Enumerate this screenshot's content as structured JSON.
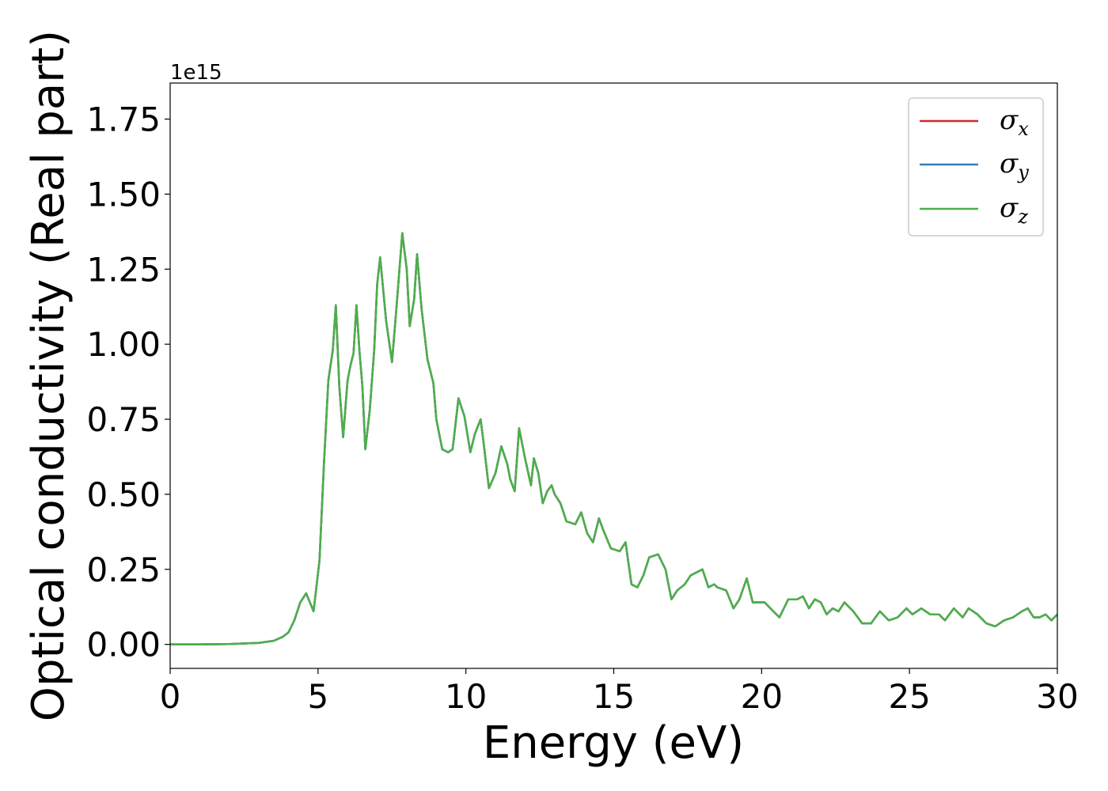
{
  "chart_data": {
    "type": "line",
    "xlabel": "Energy (eV)",
    "ylabel": "Optical conductivity (Real part)",
    "y_offset_label": "1e15",
    "xlim": [
      0,
      30
    ],
    "ylim": [
      -0.08,
      1.87
    ],
    "y_scale": 1000000000000000.0,
    "x_ticks": [
      0,
      5,
      10,
      15,
      20,
      25,
      30
    ],
    "x_tick_labels": [
      "0",
      "5",
      "10",
      "15",
      "20",
      "25",
      "30"
    ],
    "y_ticks": [
      0.0,
      0.25,
      0.5,
      0.75,
      1.0,
      1.25,
      1.5,
      1.75
    ],
    "y_tick_labels": [
      "0.00",
      "0.25",
      "0.50",
      "0.75",
      "1.00",
      "1.25",
      "1.50",
      "1.75"
    ],
    "grid": false,
    "legend_position": "top-right",
    "x": [
      0,
      1,
      2,
      3,
      3.5,
      3.8,
      4.0,
      4.2,
      4.4,
      4.6,
      4.85,
      5.05,
      5.2,
      5.35,
      5.5,
      5.6,
      5.72,
      5.85,
      6.0,
      6.1,
      6.2,
      6.3,
      6.4,
      6.5,
      6.6,
      6.75,
      6.9,
      7.0,
      7.1,
      7.3,
      7.5,
      7.65,
      7.85,
      8.0,
      8.1,
      8.25,
      8.35,
      8.5,
      8.7,
      8.9,
      9.0,
      9.2,
      9.4,
      9.55,
      9.75,
      9.95,
      10.15,
      10.3,
      10.5,
      10.6,
      10.78,
      11.0,
      11.2,
      11.4,
      11.5,
      11.65,
      11.8,
      12.0,
      12.2,
      12.3,
      12.45,
      12.6,
      12.75,
      12.9,
      13.0,
      13.2,
      13.4,
      13.7,
      13.9,
      14.1,
      14.3,
      14.5,
      14.65,
      14.9,
      15.2,
      15.4,
      15.6,
      15.8,
      16.0,
      16.2,
      16.5,
      16.75,
      16.95,
      17.15,
      17.4,
      17.6,
      17.8,
      18.0,
      18.2,
      18.4,
      18.5,
      18.8,
      19.05,
      19.25,
      19.5,
      19.7,
      19.9,
      20.1,
      20.3,
      20.6,
      20.9,
      21.2,
      21.4,
      21.6,
      21.8,
      22.0,
      22.2,
      22.4,
      22.6,
      22.8,
      23.1,
      23.4,
      23.7,
      24.0,
      24.3,
      24.6,
      24.9,
      25.1,
      25.4,
      25.7,
      26.0,
      26.2,
      26.5,
      26.8,
      27.0,
      27.3,
      27.6,
      27.9,
      28.2,
      28.5,
      28.8,
      29.0,
      29.2,
      29.4,
      29.6,
      29.8,
      30.0
    ],
    "series": [
      {
        "name": "σx",
        "color": "#d62728",
        "values": [
          0,
          0,
          0.001,
          0.005,
          0.012,
          0.025,
          0.04,
          0.08,
          0.14,
          0.17,
          0.11,
          0.28,
          0.6,
          0.88,
          0.98,
          1.13,
          0.86,
          0.69,
          0.88,
          0.93,
          0.97,
          1.13,
          0.98,
          0.86,
          0.65,
          0.78,
          0.98,
          1.2,
          1.29,
          1.08,
          0.94,
          1.12,
          1.37,
          1.25,
          1.06,
          1.15,
          1.3,
          1.12,
          0.95,
          0.87,
          0.75,
          0.65,
          0.64,
          0.65,
          0.82,
          0.76,
          0.64,
          0.7,
          0.75,
          0.67,
          0.52,
          0.57,
          0.66,
          0.6,
          0.55,
          0.51,
          0.72,
          0.62,
          0.53,
          0.62,
          0.57,
          0.47,
          0.51,
          0.53,
          0.5,
          0.47,
          0.41,
          0.4,
          0.44,
          0.37,
          0.34,
          0.42,
          0.38,
          0.32,
          0.31,
          0.34,
          0.2,
          0.19,
          0.23,
          0.29,
          0.3,
          0.25,
          0.15,
          0.18,
          0.2,
          0.23,
          0.24,
          0.25,
          0.19,
          0.2,
          0.19,
          0.18,
          0.12,
          0.15,
          0.22,
          0.14,
          0.14,
          0.14,
          0.12,
          0.09,
          0.15,
          0.15,
          0.16,
          0.12,
          0.15,
          0.14,
          0.1,
          0.12,
          0.11,
          0.14,
          0.11,
          0.07,
          0.07,
          0.11,
          0.08,
          0.09,
          0.12,
          0.1,
          0.12,
          0.1,
          0.1,
          0.08,
          0.12,
          0.09,
          0.12,
          0.1,
          0.07,
          0.06,
          0.08,
          0.09,
          0.11,
          0.12,
          0.09,
          0.09,
          0.1,
          0.08,
          0.1
        ]
      },
      {
        "name": "σy",
        "color": "#377eb8",
        "values": [
          0,
          0,
          0.001,
          0.005,
          0.012,
          0.025,
          0.04,
          0.08,
          0.14,
          0.17,
          0.11,
          0.28,
          0.6,
          0.88,
          0.98,
          1.13,
          0.86,
          0.69,
          0.88,
          0.93,
          0.97,
          1.13,
          0.98,
          0.86,
          0.65,
          0.78,
          0.98,
          1.2,
          1.29,
          1.08,
          0.94,
          1.12,
          1.37,
          1.25,
          1.06,
          1.15,
          1.3,
          1.12,
          0.95,
          0.87,
          0.75,
          0.65,
          0.64,
          0.65,
          0.82,
          0.76,
          0.64,
          0.7,
          0.75,
          0.67,
          0.52,
          0.57,
          0.66,
          0.6,
          0.55,
          0.51,
          0.72,
          0.62,
          0.53,
          0.62,
          0.57,
          0.47,
          0.51,
          0.53,
          0.5,
          0.47,
          0.41,
          0.4,
          0.44,
          0.37,
          0.34,
          0.42,
          0.38,
          0.32,
          0.31,
          0.34,
          0.2,
          0.19,
          0.23,
          0.29,
          0.3,
          0.25,
          0.15,
          0.18,
          0.2,
          0.23,
          0.24,
          0.25,
          0.19,
          0.2,
          0.19,
          0.18,
          0.12,
          0.15,
          0.22,
          0.14,
          0.14,
          0.14,
          0.12,
          0.09,
          0.15,
          0.15,
          0.16,
          0.12,
          0.15,
          0.14,
          0.1,
          0.12,
          0.11,
          0.14,
          0.11,
          0.07,
          0.07,
          0.11,
          0.08,
          0.09,
          0.12,
          0.1,
          0.12,
          0.1,
          0.1,
          0.08,
          0.12,
          0.09,
          0.12,
          0.1,
          0.07,
          0.06,
          0.08,
          0.09,
          0.11,
          0.12,
          0.09,
          0.09,
          0.1,
          0.08,
          0.1
        ]
      },
      {
        "name": "σz",
        "color": "#4daf4a",
        "values": [
          0,
          0,
          0.001,
          0.005,
          0.012,
          0.025,
          0.04,
          0.08,
          0.14,
          0.17,
          0.11,
          0.28,
          0.6,
          0.88,
          0.98,
          1.13,
          0.86,
          0.69,
          0.88,
          0.93,
          0.97,
          1.13,
          0.98,
          0.86,
          0.65,
          0.78,
          0.98,
          1.2,
          1.29,
          1.08,
          0.94,
          1.12,
          1.37,
          1.25,
          1.06,
          1.15,
          1.3,
          1.12,
          0.95,
          0.87,
          0.75,
          0.65,
          0.64,
          0.65,
          0.82,
          0.76,
          0.64,
          0.7,
          0.75,
          0.67,
          0.52,
          0.57,
          0.66,
          0.6,
          0.55,
          0.51,
          0.72,
          0.62,
          0.53,
          0.62,
          0.57,
          0.47,
          0.51,
          0.53,
          0.5,
          0.47,
          0.41,
          0.4,
          0.44,
          0.37,
          0.34,
          0.42,
          0.38,
          0.32,
          0.31,
          0.34,
          0.2,
          0.19,
          0.23,
          0.29,
          0.3,
          0.25,
          0.15,
          0.18,
          0.2,
          0.23,
          0.24,
          0.25,
          0.19,
          0.2,
          0.19,
          0.18,
          0.12,
          0.15,
          0.22,
          0.14,
          0.14,
          0.14,
          0.12,
          0.09,
          0.15,
          0.15,
          0.16,
          0.12,
          0.15,
          0.14,
          0.1,
          0.12,
          0.11,
          0.14,
          0.11,
          0.07,
          0.07,
          0.11,
          0.08,
          0.09,
          0.12,
          0.1,
          0.12,
          0.1,
          0.1,
          0.08,
          0.12,
          0.09,
          0.12,
          0.1,
          0.07,
          0.06,
          0.08,
          0.09,
          0.11,
          0.12,
          0.09,
          0.09,
          0.1,
          0.08,
          0.1
        ]
      }
    ],
    "legend": [
      {
        "symbol": "σ",
        "sub": "x"
      },
      {
        "symbol": "σ",
        "sub": "y"
      },
      {
        "symbol": "σ",
        "sub": "z"
      }
    ]
  }
}
